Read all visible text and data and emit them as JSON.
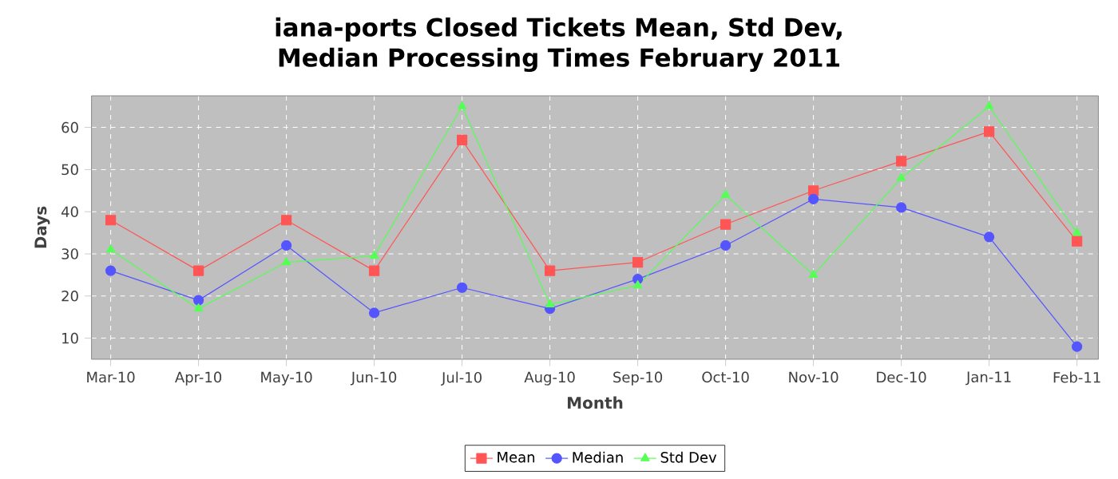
{
  "chart_data": {
    "type": "line",
    "title": "iana-ports Closed Tickets Mean, Std Dev, Median Processing Times February 2011",
    "xlabel": "Month",
    "ylabel": "Days",
    "categories": [
      "Mar-10",
      "Apr-10",
      "May-10",
      "Jun-10",
      "Jul-10",
      "Aug-10",
      "Sep-10",
      "Oct-10",
      "Nov-10",
      "Dec-10",
      "Jan-11",
      "Feb-11"
    ],
    "series": [
      {
        "name": "Mean",
        "color": "#ff5555",
        "marker": "square",
        "values": [
          38,
          26,
          38,
          26,
          57,
          26,
          28,
          37,
          45,
          52,
          59,
          33
        ]
      },
      {
        "name": "Median",
        "color": "#5555ff",
        "marker": "circle",
        "values": [
          26,
          19,
          32,
          16,
          22,
          17,
          24,
          32,
          43,
          41,
          34,
          8
        ]
      },
      {
        "name": "Std Dev",
        "color": "#55ff55",
        "marker": "triangle",
        "values": [
          31,
          17,
          28,
          29.5,
          65,
          18,
          22.5,
          44,
          25,
          48,
          65,
          35
        ]
      }
    ],
    "ylim": [
      5,
      67.5
    ],
    "yticks": [
      10,
      20,
      30,
      40,
      50,
      60
    ],
    "grid": true,
    "legend": "bottom",
    "line_style": "solid"
  }
}
